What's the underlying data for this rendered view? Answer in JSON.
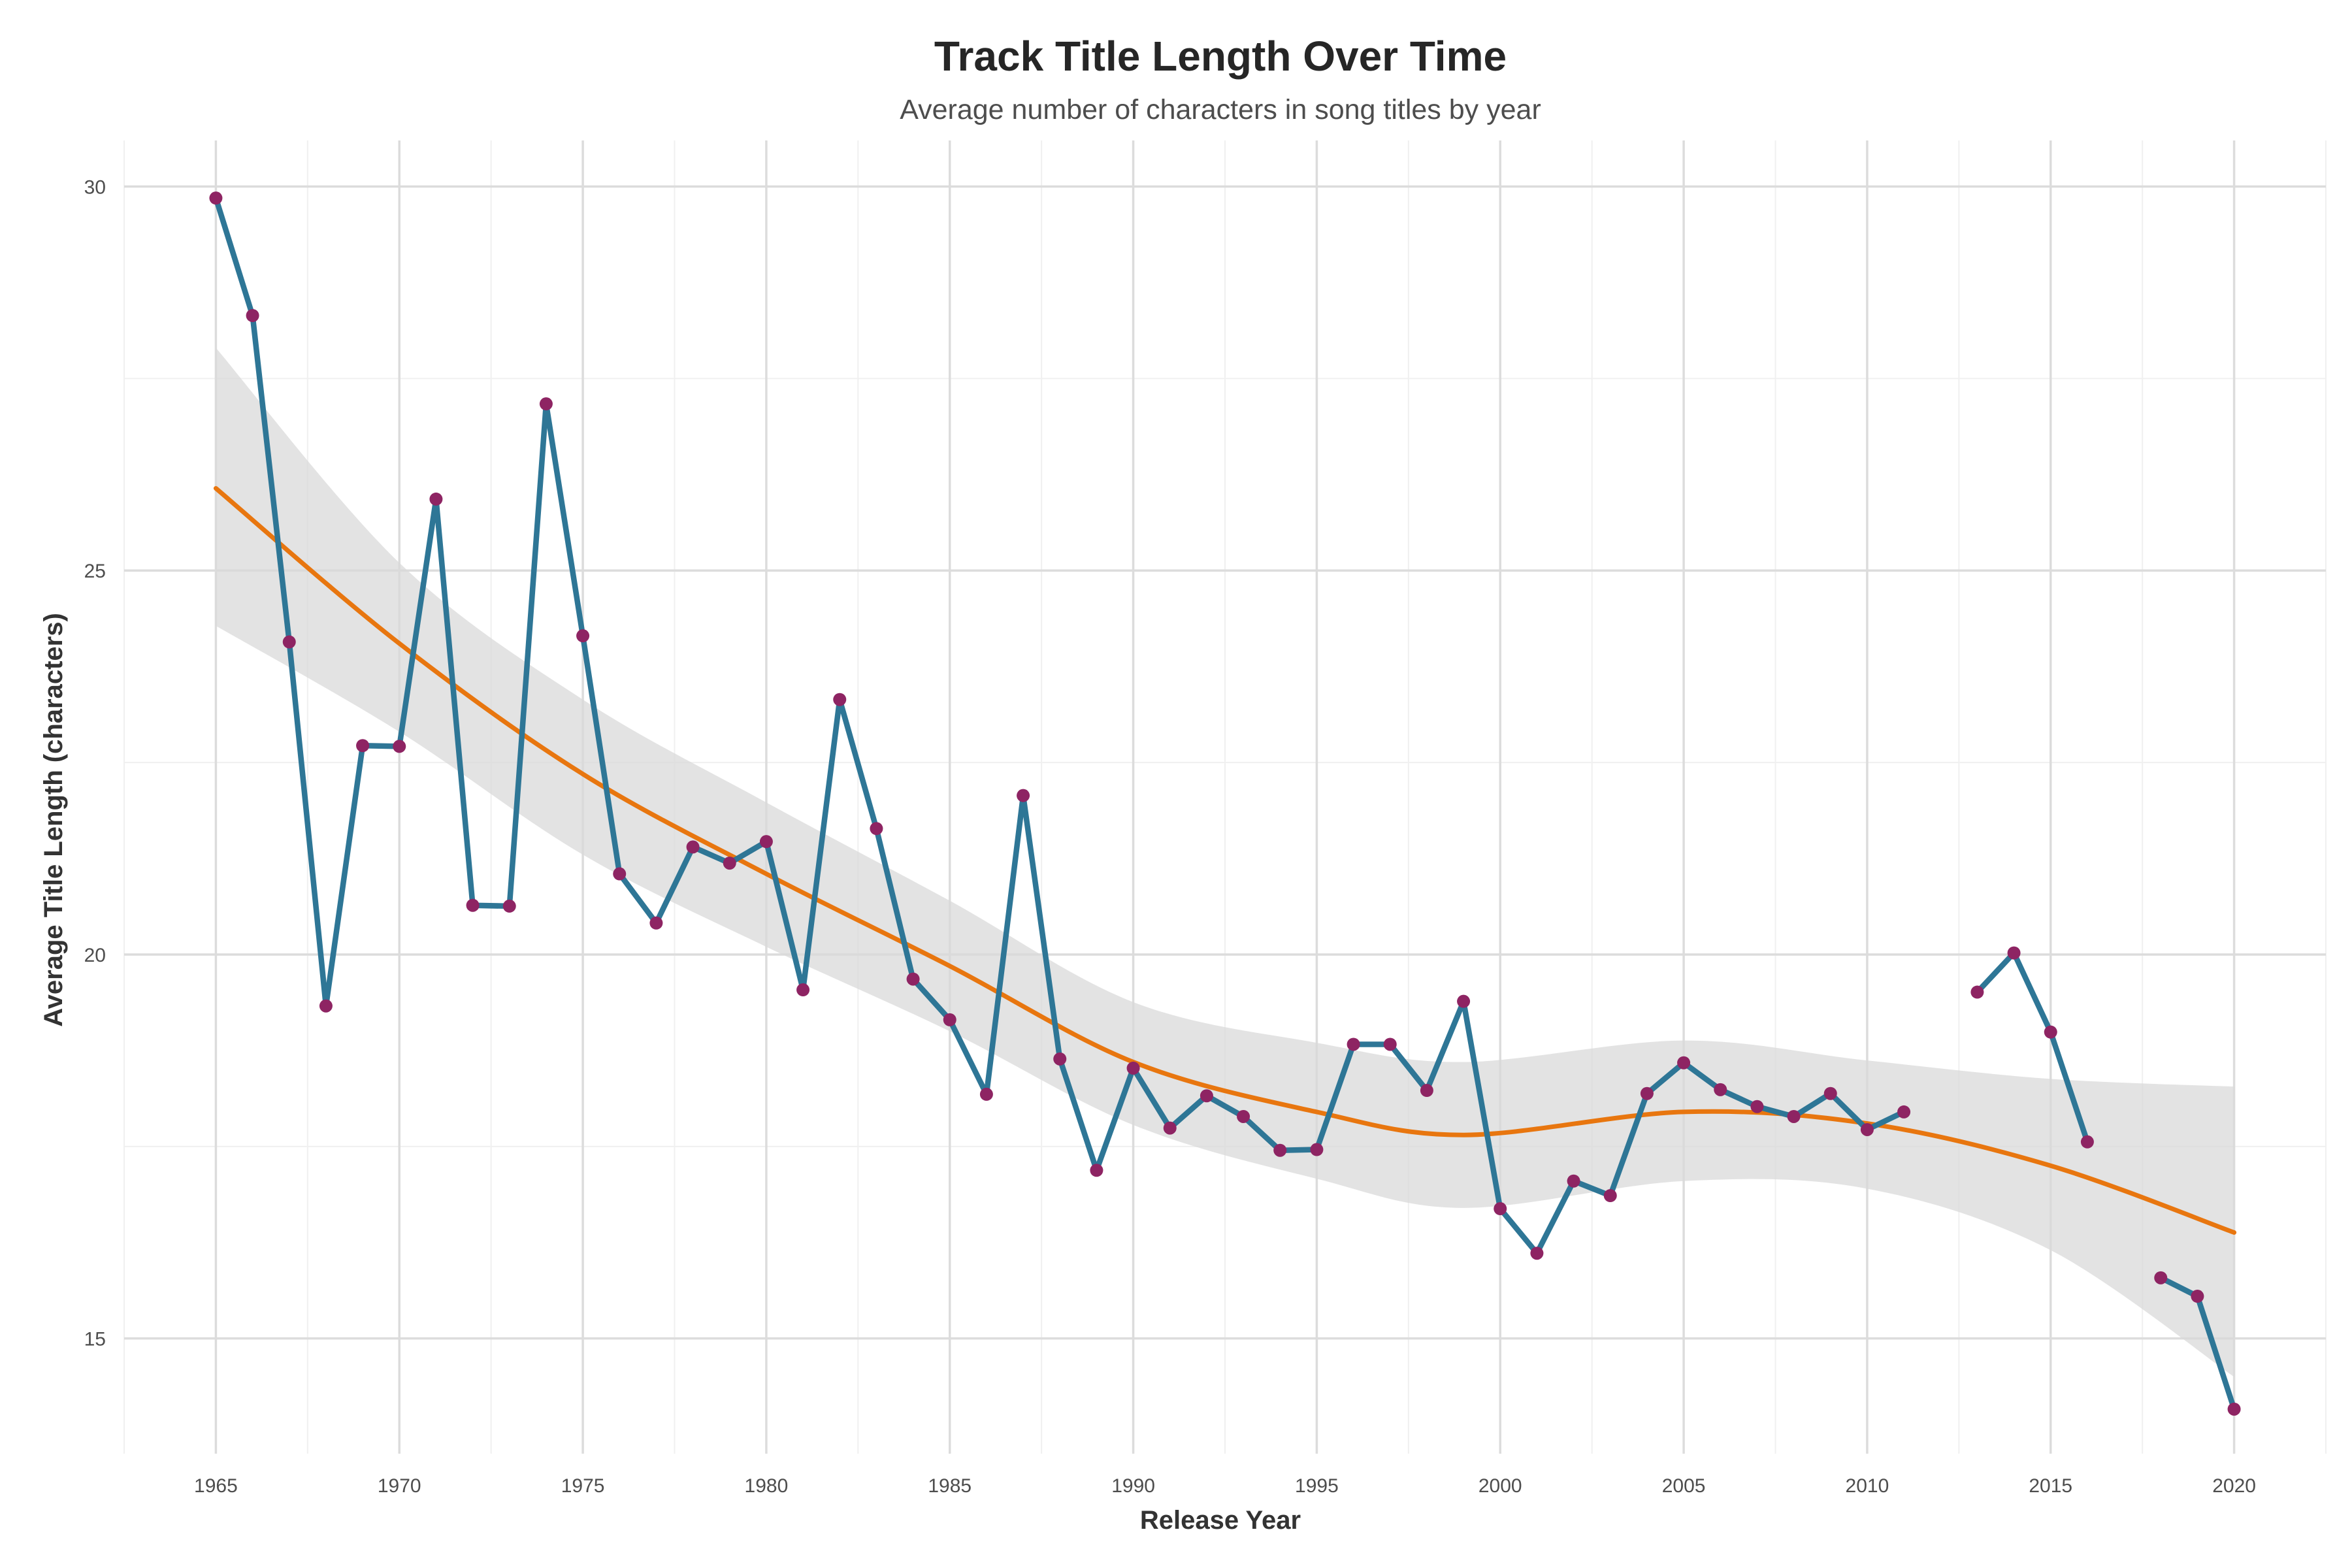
{
  "chart_data": {
    "type": "line",
    "title": "Track Title Length Over Time",
    "subtitle": "Average number of characters in song titles by year",
    "xlabel": "Release Year",
    "ylabel": "Average Title Length (characters)",
    "xlim": [
      1962.5,
      2022.5
    ],
    "ylim": [
      13.5,
      30.6
    ],
    "x_ticks": [
      1965,
      1970,
      1975,
      1980,
      1985,
      1990,
      1995,
      2000,
      2005,
      2010,
      2015,
      2020
    ],
    "x_tick_labels": [
      "1965",
      "1970",
      "1975",
      "1980",
      "1985",
      "1990",
      "1995",
      "2000",
      "2005",
      "2010",
      "2015",
      "2020"
    ],
    "y_ticks": [
      15,
      20,
      25,
      30
    ],
    "y_tick_labels": [
      "15",
      "20",
      "25",
      "30"
    ],
    "grid": true,
    "legend": "none",
    "colors": {
      "line": "#2e7696",
      "points": "#8e2463",
      "smooth": "#e8760f",
      "ribbon": "#d9d9d9",
      "grid_major": "#dcdcdc",
      "grid_minor": "#f0f0f0"
    },
    "series": [
      {
        "type": "line-with-points",
        "segments": [
          {
            "x": [
              1965,
              1966,
              1967,
              1968,
              1969,
              1970,
              1971,
              1972,
              1973,
              1974,
              1975,
              1976,
              1977,
              1978,
              1979,
              1980,
              1981,
              1982,
              1983,
              1984,
              1985,
              1986,
              1987,
              1988,
              1989,
              1990,
              1991,
              1992,
              1993,
              1994,
              1995,
              1996,
              1997,
              1998,
              1999,
              2000,
              2001,
              2002,
              2003,
              2004,
              2005,
              2006,
              2007,
              2008,
              2009,
              2010,
              2011
            ],
            "y": [
              29.85,
              28.32,
              24.07,
              19.33,
              22.72,
              22.71,
              25.93,
              20.64,
              20.63,
              27.17,
              24.15,
              21.05,
              20.41,
              21.4,
              21.19,
              21.47,
              19.54,
              23.32,
              21.64,
              19.68,
              19.15,
              18.18,
              22.07,
              18.64,
              17.19,
              18.52,
              17.74,
              18.16,
              17.89,
              17.45,
              17.46,
              18.83,
              18.83,
              18.23,
              19.39,
              16.69,
              16.11,
              17.05,
              16.86,
              18.19,
              18.59,
              18.24,
              18.02,
              17.89,
              18.19,
              17.72,
              17.95
            ]
          },
          {
            "x": [
              2013,
              2014,
              2015,
              2016
            ],
            "y": [
              19.51,
              20.02,
              18.99,
              17.56
            ]
          },
          {
            "x": [
              2018,
              2019,
              2020
            ],
            "y": [
              15.79,
              15.55,
              14.08
            ]
          }
        ]
      },
      {
        "type": "smooth-trend",
        "x": [
          1965,
          1970,
          1975,
          1980,
          1985,
          1990,
          1995,
          1999,
          2005,
          2010,
          2015,
          2020
        ],
        "y": [
          26.07,
          24.05,
          22.35,
          21.05,
          19.85,
          18.6,
          17.95,
          17.65,
          17.95,
          17.8,
          17.25,
          16.38
        ],
        "ci_lower": [
          24.28,
          22.9,
          21.3,
          20.1,
          19.0,
          17.78,
          17.08,
          16.7,
          17.05,
          16.95,
          16.15,
          14.5
        ],
        "ci_upper": [
          27.9,
          25.1,
          23.32,
          21.98,
          20.7,
          19.38,
          18.85,
          18.6,
          18.88,
          18.62,
          18.38,
          18.28
        ]
      }
    ]
  }
}
